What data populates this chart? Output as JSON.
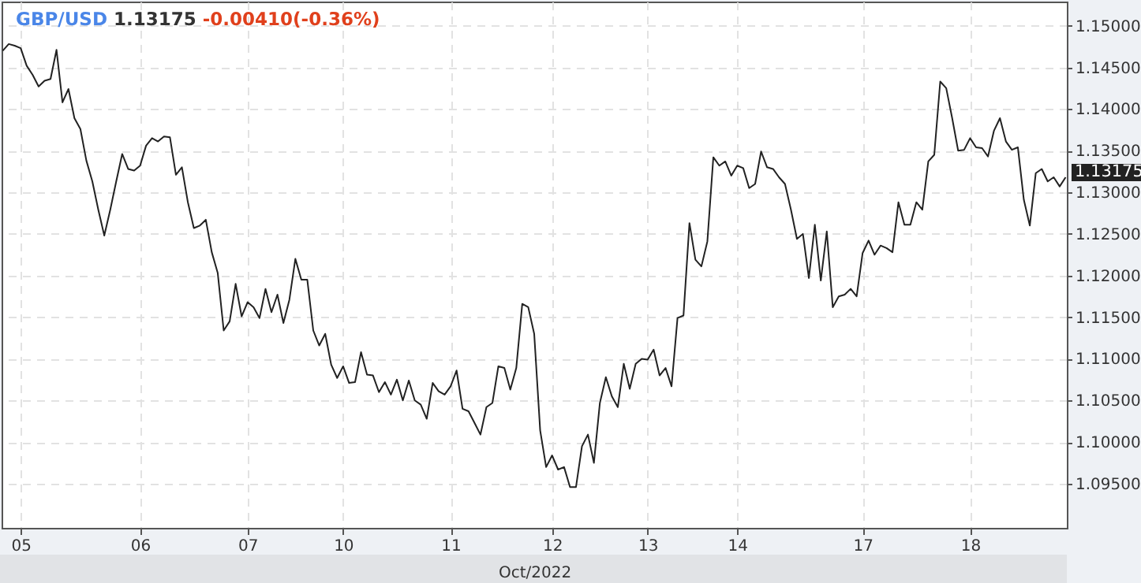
{
  "chart_data": {
    "type": "line",
    "title": "GBP/USD",
    "xlabel": "Oct/2022",
    "annotations": [
      "1.13175",
      "-0.00410(-0.36%)",
      "1.13175"
    ],
    "categories": [
      null,
      null,
      null,
      "05",
      null,
      null,
      null,
      null,
      null,
      null,
      null,
      null,
      null,
      null,
      null,
      null,
      null,
      null,
      null,
      null,
      null,
      null,
      null,
      "06",
      null,
      null,
      null,
      null,
      null,
      null,
      null,
      null,
      null,
      null,
      null,
      null,
      null,
      null,
      null,
      null,
      null,
      "07",
      null,
      null,
      null,
      null,
      null,
      null,
      null,
      null,
      null,
      null,
      null,
      null,
      null,
      null,
      null,
      "10",
      null,
      null,
      null,
      null,
      null,
      null,
      null,
      null,
      null,
      null,
      null,
      null,
      null,
      null,
      null,
      null,
      null,
      "11",
      null,
      null,
      null,
      null,
      null,
      null,
      null,
      null,
      null,
      null,
      null,
      null,
      null,
      null,
      null,
      null,
      "12",
      null,
      null,
      null,
      null,
      null,
      null,
      null,
      null,
      null,
      null,
      null,
      null,
      null,
      null,
      null,
      "13",
      null,
      null,
      null,
      null,
      null,
      null,
      null,
      null,
      null,
      null,
      null,
      null,
      null,
      null,
      "14",
      null,
      null,
      null,
      null,
      null,
      null,
      null,
      null,
      null,
      null,
      null,
      null,
      null,
      null,
      null,
      null,
      null,
      null,
      null,
      null,
      "17",
      null,
      null,
      null,
      null,
      null,
      null,
      null,
      null,
      null,
      null,
      null,
      null,
      null,
      null,
      null,
      null,
      null,
      "18",
      null,
      null,
      null,
      null,
      null,
      null,
      null,
      null,
      null,
      null,
      null,
      null,
      null,
      null,
      null,
      null
    ],
    "series": [
      {
        "color": "#222222",
        "values": [
          1.147,
          1.1478,
          1.1476,
          1.1473,
          1.1452,
          1.1441,
          1.1427,
          1.1434,
          1.1436,
          1.1471,
          1.1408,
          1.1424,
          1.1389,
          1.1376,
          1.1338,
          1.1313,
          1.1279,
          1.1248,
          1.1279,
          1.1313,
          1.1346,
          1.1328,
          1.1326,
          1.1332,
          1.1356,
          1.1365,
          1.1361,
          1.1367,
          1.1366,
          1.1321,
          1.133,
          1.1288,
          1.1257,
          1.126,
          1.1267,
          1.1228,
          1.1203,
          1.1134,
          1.1145,
          1.119,
          1.1151,
          1.1168,
          1.1162,
          1.1149,
          1.1184,
          1.1156,
          1.1177,
          1.1143,
          1.1171,
          1.122,
          1.1195,
          1.1195,
          1.1134,
          1.1116,
          1.113,
          1.1093,
          1.1077,
          1.1091,
          1.1071,
          1.1072,
          1.1108,
          1.1081,
          1.108,
          1.106,
          1.1072,
          1.1057,
          1.1075,
          1.105,
          1.1074,
          1.105,
          1.1045,
          1.1028,
          1.1071,
          1.1061,
          1.1057,
          1.1067,
          1.1086,
          1.104,
          1.1037,
          1.1023,
          1.1009,
          1.1042,
          1.1047,
          1.1091,
          1.1089,
          1.1063,
          1.1089,
          1.1166,
          1.1162,
          1.113,
          1.1014,
          1.097,
          1.0984,
          1.0967,
          1.097,
          1.0946,
          1.0946,
          1.0995,
          1.1009,
          1.0975,
          1.1047,
          1.1078,
          1.1055,
          1.1042,
          1.1094,
          1.1064,
          1.1094,
          1.11,
          1.1099,
          1.1111,
          1.108,
          1.1089,
          1.1067,
          1.1149,
          1.1152,
          1.1263,
          1.1219,
          1.1211,
          1.1241,
          1.1342,
          1.1332,
          1.1337,
          1.132,
          1.1332,
          1.1329,
          1.1305,
          1.131,
          1.1349,
          1.133,
          1.1328,
          1.1318,
          1.131,
          1.1279,
          1.1244,
          1.125,
          1.1197,
          1.1261,
          1.1194,
          1.1253,
          1.1162,
          1.1175,
          1.1177,
          1.1184,
          1.1175,
          1.1227,
          1.1242,
          1.1225,
          1.1236,
          1.1233,
          1.1228,
          1.1288,
          1.1261,
          1.1261,
          1.1288,
          1.1279,
          1.1337,
          1.1345,
          1.1433,
          1.1425,
          1.1389,
          1.135,
          1.1351,
          1.1365,
          1.1354,
          1.1353,
          1.1343,
          1.1374,
          1.1389,
          1.1361,
          1.1351,
          1.1354,
          1.1291,
          1.126,
          1.1323,
          1.1328,
          1.1313,
          1.1318,
          1.1307,
          1.1318
        ]
      }
    ],
    "ylim": [
      1.0897,
      1.1529
    ],
    "yticks": [
      {
        "value": 1.095,
        "label": "1.09500"
      },
      {
        "value": 1.1,
        "label": "1.10000"
      },
      {
        "value": 1.105,
        "label": "1.10500"
      },
      {
        "value": 1.11,
        "label": "1.11000"
      },
      {
        "value": 1.115,
        "label": "1.11500"
      },
      {
        "value": 1.12,
        "label": "1.12000"
      },
      {
        "value": 1.125,
        "label": "1.12500"
      },
      {
        "value": 1.13,
        "label": "1.13000"
      },
      {
        "value": 1.135,
        "label": "1.13500"
      },
      {
        "value": 1.14,
        "label": "1.14000"
      },
      {
        "value": 1.145,
        "label": "1.14500"
      },
      {
        "value": 1.15,
        "label": "1.15000"
      }
    ],
    "grid": true,
    "line_style": "solid",
    "marker": "none"
  }
}
